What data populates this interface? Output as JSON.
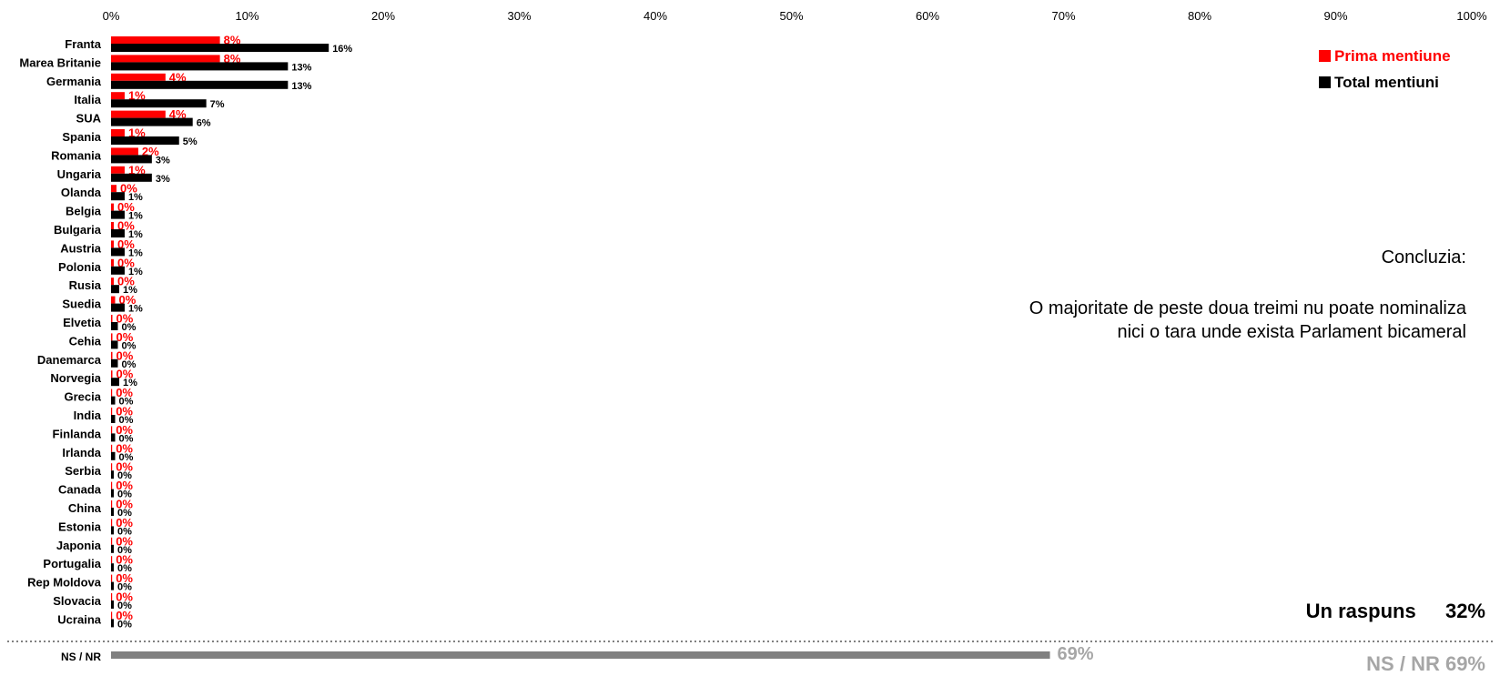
{
  "chart_data": {
    "type": "bar",
    "orientation": "horizontal",
    "x_ticks": [
      "0%",
      "10%",
      "20%",
      "30%",
      "40%",
      "50%",
      "60%",
      "70%",
      "80%",
      "90%",
      "100%"
    ],
    "xlim": [
      0,
      100
    ],
    "categories": [
      "Franta",
      "Marea Britanie",
      "Germania",
      "Italia",
      "SUA",
      "Spania",
      "Romania",
      "Ungaria",
      "Olanda",
      "Belgia",
      "Bulgaria",
      "Austria",
      "Polonia",
      "Rusia",
      "Suedia",
      "Elvetia",
      "Cehia",
      "Danemarca",
      "Norvegia",
      "Grecia",
      "India",
      "Finlanda",
      "Irlanda",
      "Serbia",
      "Canada",
      "China",
      "Estonia",
      "Japonia",
      "Portugalia",
      "Rep Moldova",
      "Slovacia",
      "Ucraina"
    ],
    "series": [
      {
        "name": "Prima mentiune",
        "color": "#ff0000",
        "values": [
          8,
          8,
          4,
          1,
          4,
          1,
          2,
          1,
          0.4,
          0.2,
          0.2,
          0.2,
          0.2,
          0.2,
          0.3,
          0.1,
          0.1,
          0.1,
          0.1,
          0.05,
          0.05,
          0.05,
          0.05,
          0.05,
          0.05,
          0.05,
          0.05,
          0.05,
          0.05,
          0.05,
          0.05,
          0.05
        ],
        "labels": [
          "8%",
          "8%",
          "4%",
          "1%",
          "4%",
          "1%",
          "2%",
          "1%",
          "0%",
          "0%",
          "0%",
          "0%",
          "0%",
          "0%",
          "0%",
          "0%",
          "0%",
          "0%",
          "0%",
          "0%",
          "0%",
          "0%",
          "0%",
          "0%",
          "0%",
          "0%",
          "0%",
          "0%",
          "0%",
          "0%",
          "0%",
          "0%"
        ]
      },
      {
        "name": "Total mentiuni",
        "color": "#000000",
        "values": [
          16,
          13,
          13,
          7,
          6,
          5,
          3,
          3,
          1,
          1,
          1,
          1,
          1,
          0.6,
          1,
          0.5,
          0.5,
          0.5,
          0.6,
          0.3,
          0.3,
          0.3,
          0.3,
          0.2,
          0.2,
          0.2,
          0.2,
          0.2,
          0.2,
          0.2,
          0.2,
          0.2
        ],
        "labels": [
          "16%",
          "13%",
          "13%",
          "7%",
          "6%",
          "5%",
          "3%",
          "3%",
          "1%",
          "1%",
          "1%",
          "1%",
          "1%",
          "1%",
          "1%",
          "0%",
          "0%",
          "0%",
          "1%",
          "0%",
          "0%",
          "0%",
          "0%",
          "0%",
          "0%",
          "0%",
          "0%",
          "0%",
          "0%",
          "0%",
          "0%",
          "0%"
        ]
      }
    ],
    "nsnr": {
      "label": "NS / NR",
      "value": 69,
      "value_label": "69%",
      "color": "#808080"
    },
    "legend_position": "top-right",
    "grid": false
  },
  "legend": {
    "first": {
      "label": "Prima mentiune",
      "color": "#ff0000"
    },
    "total": {
      "label": "Total mentiuni",
      "color": "#000000"
    }
  },
  "conclusion": {
    "heading": "Concluzia:",
    "line1": "O majoritate de peste doua treimi nu poate nominaliza",
    "line2": "nici o tara unde exista Parlament bicameral"
  },
  "summary": {
    "answer_label": "Un raspuns",
    "answer_value": "32%",
    "nsnr_label": "NS / NR 69%"
  }
}
